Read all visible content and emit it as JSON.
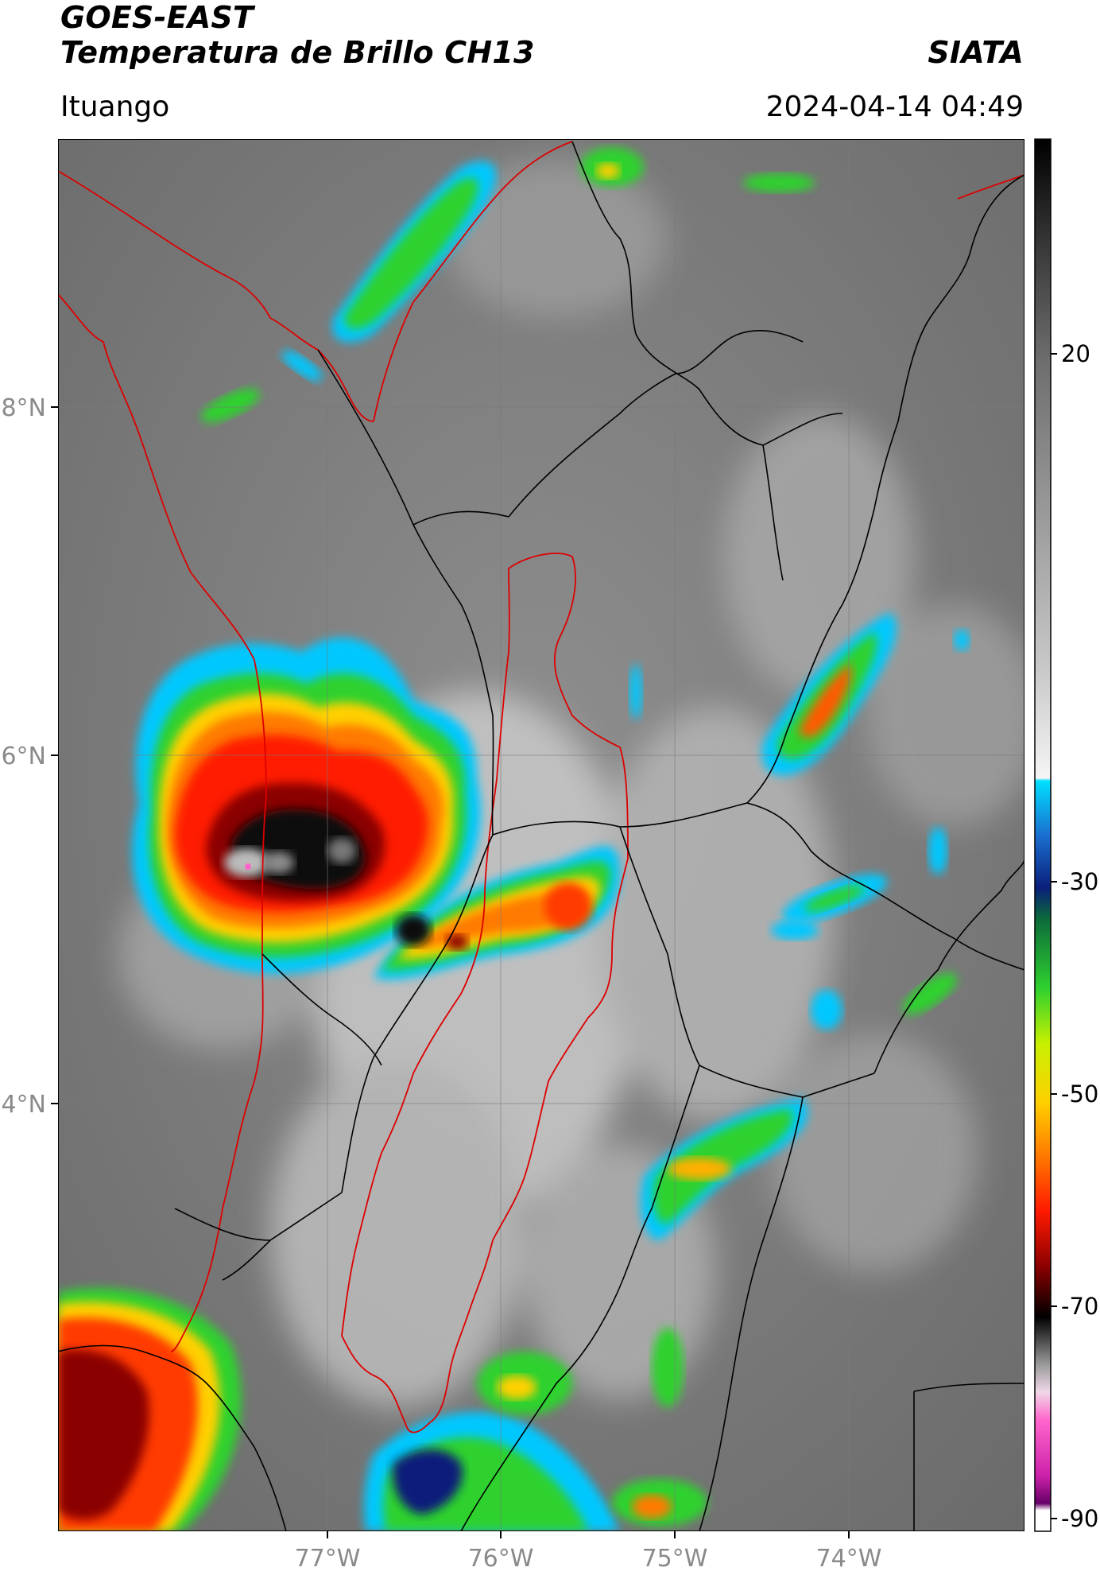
{
  "header": {
    "title_line1": "GOES-EAST",
    "title_line2": "Temperatura de Brillo CH13",
    "brand": "SIATA",
    "location": "Ituango",
    "datetime": "2024-04-14 04:49"
  },
  "map": {
    "lat_labels": [
      "8°N",
      "6°N",
      "4°N"
    ],
    "lon_labels": [
      "77°W",
      "76°W",
      "75°W",
      "74°W"
    ],
    "grid": true,
    "border_colors": {
      "country": "#dd0000",
      "department": "#000000",
      "basin": "#dd0000"
    }
  },
  "colorbar": {
    "orientation": "vertical",
    "position": "right",
    "range": [
      -90,
      40
    ],
    "ticks": [
      "20",
      "-30",
      "-50",
      "-70",
      "-90"
    ],
    "stops": [
      {
        "value": 40,
        "color": "#000000"
      },
      {
        "value": 30,
        "color": "#3a3a3a"
      },
      {
        "value": 20,
        "color": "#6e6e6e"
      },
      {
        "value": 5,
        "color": "#9a9a9a"
      },
      {
        "value": -10,
        "color": "#c8c8c8"
      },
      {
        "value": -20,
        "color": "#f5f5f5"
      },
      {
        "value": -20.5,
        "color": "#00e0ff"
      },
      {
        "value": -25,
        "color": "#1a6fd0"
      },
      {
        "value": -30,
        "color": "#0a1f7a"
      },
      {
        "value": -33,
        "color": "#0c6a3a"
      },
      {
        "value": -40,
        "color": "#2fd12f"
      },
      {
        "value": -45,
        "color": "#c8f000"
      },
      {
        "value": -50,
        "color": "#ffd000"
      },
      {
        "value": -55,
        "color": "#ff7a00"
      },
      {
        "value": -60,
        "color": "#ff1a00"
      },
      {
        "value": -65,
        "color": "#8a0000"
      },
      {
        "value": -70,
        "color": "#000000"
      },
      {
        "value": -75,
        "color": "#999999"
      },
      {
        "value": -78,
        "color": "#f0d8e8"
      },
      {
        "value": -80,
        "color": "#ff66cc"
      },
      {
        "value": -85,
        "color": "#cc22aa"
      },
      {
        "value": -88,
        "color": "#660066"
      },
      {
        "value": -89,
        "color": "#ffffff"
      }
    ]
  }
}
